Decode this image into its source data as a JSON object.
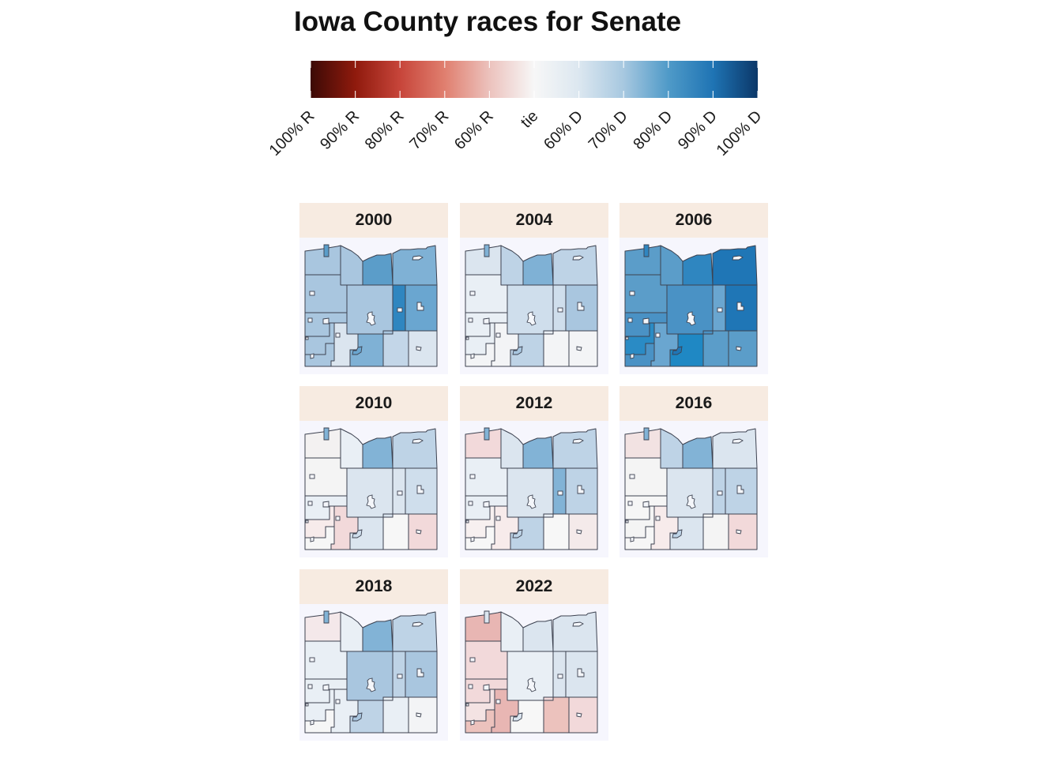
{
  "title": "Iowa County races for Senate",
  "legend": {
    "colors": [
      "#3c0a06",
      "#8f1a0d",
      "#c7453a",
      "#e07f6f",
      "#ecc2bd",
      "#f7f7f7",
      "#dce7f0",
      "#a7c8e0",
      "#4f9ac8",
      "#1f74b4",
      "#0b3768"
    ],
    "labels": [
      "100% R",
      "90% R",
      "80% R",
      "70% R",
      "60% R",
      "tie",
      "60% D",
      "70% D",
      "80% D",
      "90% D",
      "100% D"
    ]
  },
  "colors": {
    "strip_bg": "#f7ebe1",
    "panel_bg": "#f6f6fd",
    "border": "#3d4250"
  },
  "panels": [
    {
      "year": "2000",
      "colors": [
        "#a9c6df",
        "#a9c6df",
        "#5b9dc9",
        "#7fb1d5",
        "#a9c6df",
        "#a9c6df",
        "#a9c6df",
        "#2f86c0",
        "#6aa6d0",
        "#a9c6df",
        "#a9c6df",
        "#dbe5ef",
        "#7fb1d5",
        "#a9c6df",
        "#c3d6e8",
        "#dbe5ef",
        "#7fb1d5"
      ]
    },
    {
      "year": "2004",
      "colors": [
        "#dbe5ef",
        "#bed3e6",
        "#7fb1d5",
        "#bed3e6",
        "#e9eff5",
        "#e9eff5",
        "#cfdeec",
        "#cfdeec",
        "#a9c6df",
        "#e9eff5",
        "#f3f4f6",
        "#f3f4f6",
        "#bed3e6",
        "#e9eff5",
        "#f3f4f6",
        "#f3f4f6",
        "#a9c6df"
      ]
    },
    {
      "year": "2006",
      "colors": [
        "#5b9dc9",
        "#5b9dc9",
        "#2f86c0",
        "#1f76b6",
        "#5b9dc9",
        "#4a92c5",
        "#4a92c5",
        "#6aa6d0",
        "#1f76b6",
        "#2a8bc5",
        "#4a92c5",
        "#6aa6d0",
        "#1f88c4",
        "#4a92c5",
        "#5b9dc9",
        "#5b9dc9",
        "#4a92c5"
      ]
    },
    {
      "year": "2010",
      "colors": [
        "#f3f1f1",
        "#e9eff5",
        "#82b3d6",
        "#bed3e6",
        "#f4f4f4",
        "#e9eff5",
        "#dbe5ef",
        "#dbe5ef",
        "#cfdeec",
        "#f7ebeb",
        "#f6f6f6",
        "#f2d9da",
        "#dbe5ef",
        "#dbe5ef",
        "#f7f7f7",
        "#f2d9da",
        "#bed3e6"
      ]
    },
    {
      "year": "2012",
      "colors": [
        "#f2d9da",
        "#dbe5ef",
        "#82b3d6",
        "#bed3e6",
        "#e9eff5",
        "#e9eff5",
        "#dbe5ef",
        "#82b3d6",
        "#bed3e6",
        "#f7f0f0",
        "#f7f7f7",
        "#f7ebeb",
        "#bed3e6",
        "#e9eff5",
        "#f7f7f7",
        "#f4eaea",
        "#bed3e6"
      ]
    },
    {
      "year": "2016",
      "colors": [
        "#f2e2e2",
        "#bed3e6",
        "#82b3d6",
        "#dbe5ef",
        "#f4f4f4",
        "#f6f6f6",
        "#dbe5ef",
        "#bed3e6",
        "#bed3e6",
        "#f4f4f4",
        "#f6f6f6",
        "#f7ebeb",
        "#dbe5ef",
        "#f4f4f4",
        "#f4f4f4",
        "#f2d9da",
        "#bed3e6"
      ]
    },
    {
      "year": "2018",
      "colors": [
        "#f4e8ea",
        "#e9eff5",
        "#82b3d6",
        "#bed3e6",
        "#e9eff5",
        "#e9eff5",
        "#a9c6df",
        "#bed3e6",
        "#a9c6df",
        "#e9eff5",
        "#f6f6f6",
        "#e9eff5",
        "#bed3e6",
        "#e9eff5",
        "#e9eff5",
        "#f3f4f6",
        "#a9c6df"
      ]
    },
    {
      "year": "2022",
      "colors": [
        "#e8b6b3",
        "#e9eff5",
        "#dbe5ef",
        "#dbe5ef",
        "#f2d9da",
        "#f2d9da",
        "#e9eff5",
        "#dbe5ef",
        "#dbe5ef",
        "#f4e3e3",
        "#ecc2bd",
        "#e8b6b3",
        "#f7f7f7",
        "#f2d9da",
        "#ecc2bd",
        "#f2d9da",
        "#f3f4f6"
      ]
    }
  ]
}
